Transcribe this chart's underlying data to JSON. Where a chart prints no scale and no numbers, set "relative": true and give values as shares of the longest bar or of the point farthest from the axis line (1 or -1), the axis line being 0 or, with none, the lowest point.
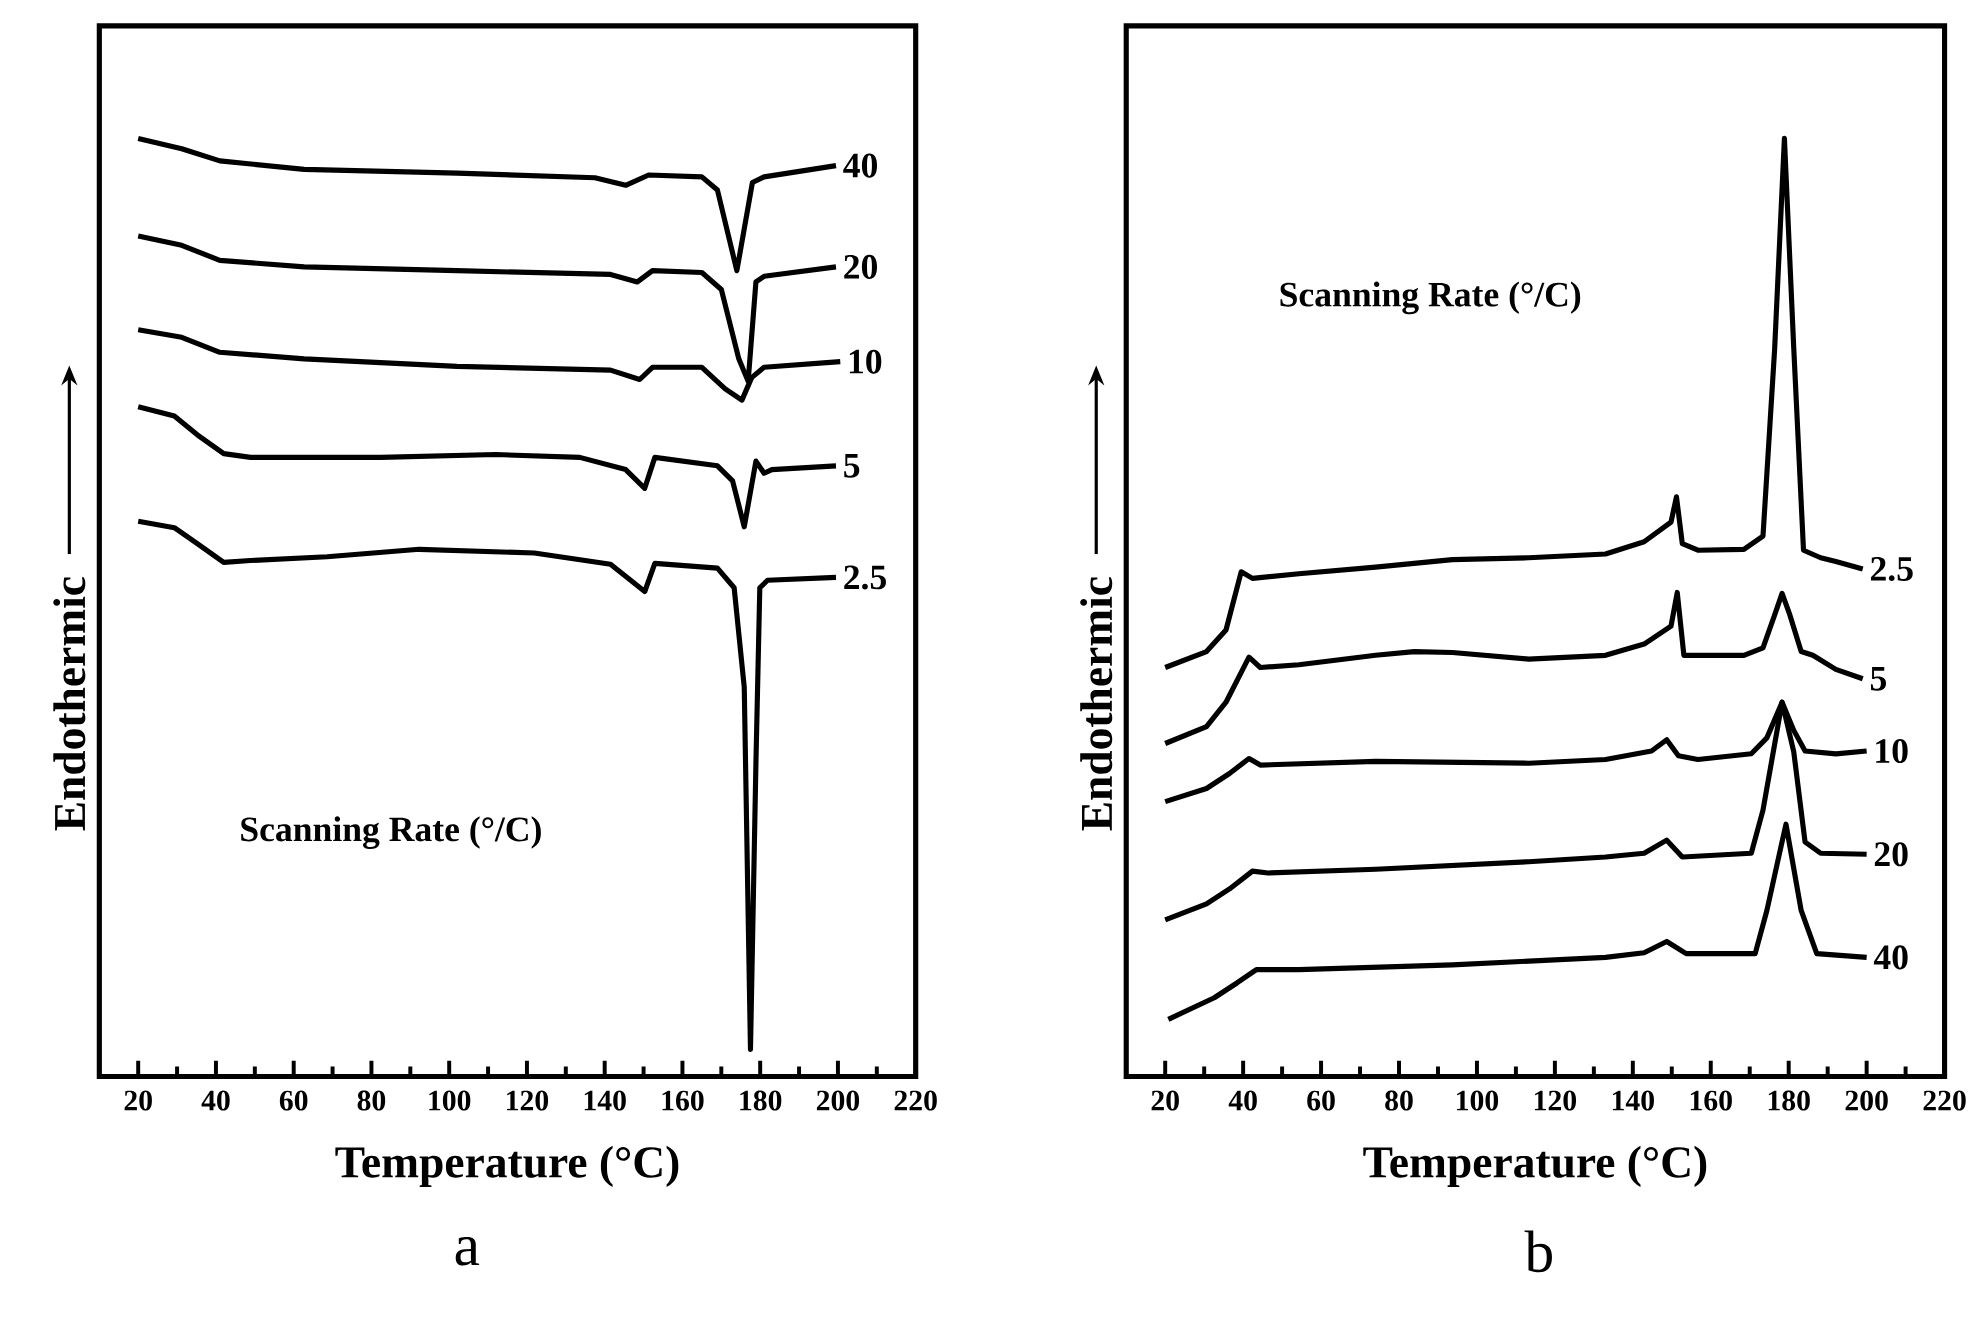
{
  "chart_data": [
    {
      "type": "line",
      "relative": true,
      "xlabel": "Temperature (°C)",
      "ylabel": "Endothermic",
      "xlim": [
        10,
        220
      ],
      "xticks": [
        20,
        40,
        60,
        80,
        100,
        120,
        140,
        160,
        180,
        200,
        220
      ],
      "annotations": [
        "Scanning Rate (°/C)",
        "a"
      ],
      "series": [
        {
          "name": "40",
          "color": "#000000",
          "x": [
            20,
            31.2,
            41,
            62.7,
            102,
            137.5,
            145.4,
            151.3,
            165,
            169,
            174,
            178,
            181,
            199.5
          ],
          "values": [
            1.0,
            0.989,
            0.976,
            0.967,
            0.963,
            0.958,
            0.95,
            0.961,
            0.959,
            0.945,
            0.859,
            0.953,
            0.959,
            0.971
          ]
        },
        {
          "name": "20",
          "color": "#000000",
          "x": [
            20,
            31.2,
            41,
            62.7,
            102,
            141.5,
            148.4,
            152.3,
            165,
            170,
            174.5,
            176.9,
            178.9,
            181,
            199.5
          ],
          "values": [
            0.896,
            0.886,
            0.87,
            0.863,
            0.859,
            0.855,
            0.847,
            0.859,
            0.857,
            0.839,
            0.765,
            0.741,
            0.847,
            0.853,
            0.863
          ]
        },
        {
          "name": "10",
          "color": "#000000",
          "x": [
            20,
            31.2,
            41,
            62.7,
            102,
            141.5,
            149,
            152.3,
            165,
            171,
            175.3,
            177.8,
            181,
            200.6
          ],
          "values": [
            0.796,
            0.788,
            0.772,
            0.765,
            0.757,
            0.753,
            0.743,
            0.756,
            0.756,
            0.733,
            0.721,
            0.745,
            0.756,
            0.762
          ]
        },
        {
          "name": "5",
          "color": "#000000",
          "x": [
            20,
            29.3,
            35.2,
            42,
            48.9,
            82.4,
            111.9,
            133.6,
            145.4,
            150.3,
            152.9,
            169,
            172.9,
            175.9,
            178.9,
            181,
            183,
            199.5
          ],
          "values": [
            0.714,
            0.704,
            0.684,
            0.664,
            0.66,
            0.66,
            0.663,
            0.66,
            0.647,
            0.627,
            0.66,
            0.651,
            0.635,
            0.586,
            0.656,
            0.643,
            0.647,
            0.651
          ]
        },
        {
          "name": "2.5",
          "color": "#000000",
          "x": [
            20,
            29.3,
            35.2,
            42,
            48.9,
            68.6,
            92.3,
            121.9,
            141.5,
            150.3,
            152.9,
            169,
            173.3,
            175.9,
            177.5,
            178.9,
            179.9,
            181.9,
            199.5
          ],
          "values": [
            0.592,
            0.585,
            0.568,
            0.548,
            0.55,
            0.554,
            0.562,
            0.558,
            0.546,
            0.517,
            0.547,
            0.542,
            0.521,
            0.415,
            0.029,
            0.334,
            0.521,
            0.529,
            0.532
          ]
        }
      ]
    },
    {
      "type": "line",
      "relative": true,
      "xlabel": "Temperature (°C)",
      "ylabel": "Endothermic",
      "xlim": [
        10,
        220
      ],
      "xticks": [
        20,
        40,
        60,
        80,
        100,
        120,
        140,
        160,
        180,
        200,
        220
      ],
      "annotations": [
        "Scanning Rate (°/C)",
        "b"
      ],
      "series": [
        {
          "name": "2.5",
          "color": "#000000",
          "x": [
            20,
            30.6,
            35.6,
            39.5,
            42.4,
            54.3,
            74,
            93.7,
            113.3,
            133,
            142.9,
            149.8,
            151.2,
            152.7,
            156.7,
            168.5,
            173.4,
            176.4,
            178.9,
            181.3,
            183.8,
            188.2,
            192.1,
            199
          ],
          "values": [
            0.436,
            0.453,
            0.476,
            0.538,
            0.531,
            0.536,
            0.543,
            0.551,
            0.553,
            0.557,
            0.57,
            0.591,
            0.618,
            0.568,
            0.561,
            0.562,
            0.576,
            0.776,
            1.0,
            0.776,
            0.561,
            0.553,
            0.549,
            0.541
          ]
        },
        {
          "name": "5",
          "color": "#000000",
          "x": [
            20,
            30.6,
            35.6,
            41.5,
            44.4,
            54.3,
            74,
            83.9,
            93.7,
            113.3,
            133,
            142.9,
            149.8,
            151.4,
            153.1,
            168.5,
            173.4,
            176.4,
            178.3,
            180.3,
            183.2,
            186.2,
            192.1,
            199
          ],
          "values": [
            0.355,
            0.373,
            0.399,
            0.447,
            0.436,
            0.439,
            0.449,
            0.453,
            0.452,
            0.445,
            0.449,
            0.461,
            0.48,
            0.516,
            0.449,
            0.449,
            0.457,
            0.492,
            0.515,
            0.492,
            0.453,
            0.449,
            0.434,
            0.424
          ]
        },
        {
          "name": "10",
          "color": "#000000",
          "x": [
            20,
            30.6,
            36.5,
            41.5,
            44.4,
            74,
            113.3,
            133,
            144.8,
            148.7,
            151.7,
            156.7,
            170.4,
            174.4,
            178.3,
            181.3,
            184.2,
            192.1,
            200
          ],
          "values": [
            0.293,
            0.307,
            0.323,
            0.339,
            0.332,
            0.336,
            0.334,
            0.338,
            0.347,
            0.359,
            0.342,
            0.338,
            0.344,
            0.361,
            0.399,
            0.369,
            0.347,
            0.344,
            0.347
          ]
        },
        {
          "name": "20",
          "color": "#000000",
          "x": [
            20,
            30.6,
            36.5,
            42.4,
            46.4,
            74,
            113.3,
            133,
            142.9,
            148.7,
            152.7,
            170.4,
            173.4,
            178.3,
            181.3,
            184.2,
            188.2,
            200
          ],
          "values": [
            0.167,
            0.184,
            0.2,
            0.219,
            0.217,
            0.221,
            0.229,
            0.234,
            0.238,
            0.252,
            0.234,
            0.238,
            0.284,
            0.399,
            0.346,
            0.25,
            0.238,
            0.237
          ]
        },
        {
          "name": "40",
          "color": "#000000",
          "x": [
            20.8,
            32.6,
            38.5,
            43.4,
            54.3,
            93.7,
            133,
            142.9,
            148.7,
            153.7,
            171.4,
            174.4,
            179.3,
            183.2,
            187.2,
            200
          ],
          "values": [
            0.061,
            0.084,
            0.1,
            0.114,
            0.114,
            0.119,
            0.127,
            0.132,
            0.144,
            0.131,
            0.131,
            0.177,
            0.269,
            0.177,
            0.131,
            0.127
          ]
        }
      ]
    }
  ]
}
